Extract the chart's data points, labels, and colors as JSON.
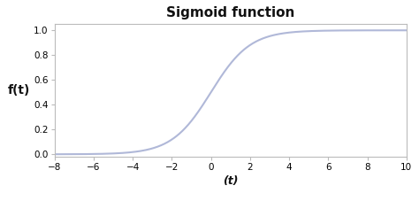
{
  "title": "Sigmoid function",
  "xlabel": "(t)",
  "ylabel": "f(t)",
  "x_min": -8,
  "x_max": 10,
  "y_min": -0.02,
  "y_max": 1.05,
  "x_ticks": [
    -8,
    -6,
    -4,
    -2,
    0,
    2,
    4,
    6,
    8,
    10
  ],
  "y_ticks": [
    0.0,
    0.2,
    0.4,
    0.6,
    0.8,
    1.0
  ],
  "line_color": "#b0b8d8",
  "line_width": 1.5,
  "bg_color": "#ffffff",
  "plot_bg_color": "#ffffff",
  "spine_color": "#bbbbbb",
  "tick_color": "#888888",
  "title_fontsize": 11,
  "label_fontsize": 9,
  "tick_fontsize": 7.5,
  "ylabel_fontsize": 10
}
